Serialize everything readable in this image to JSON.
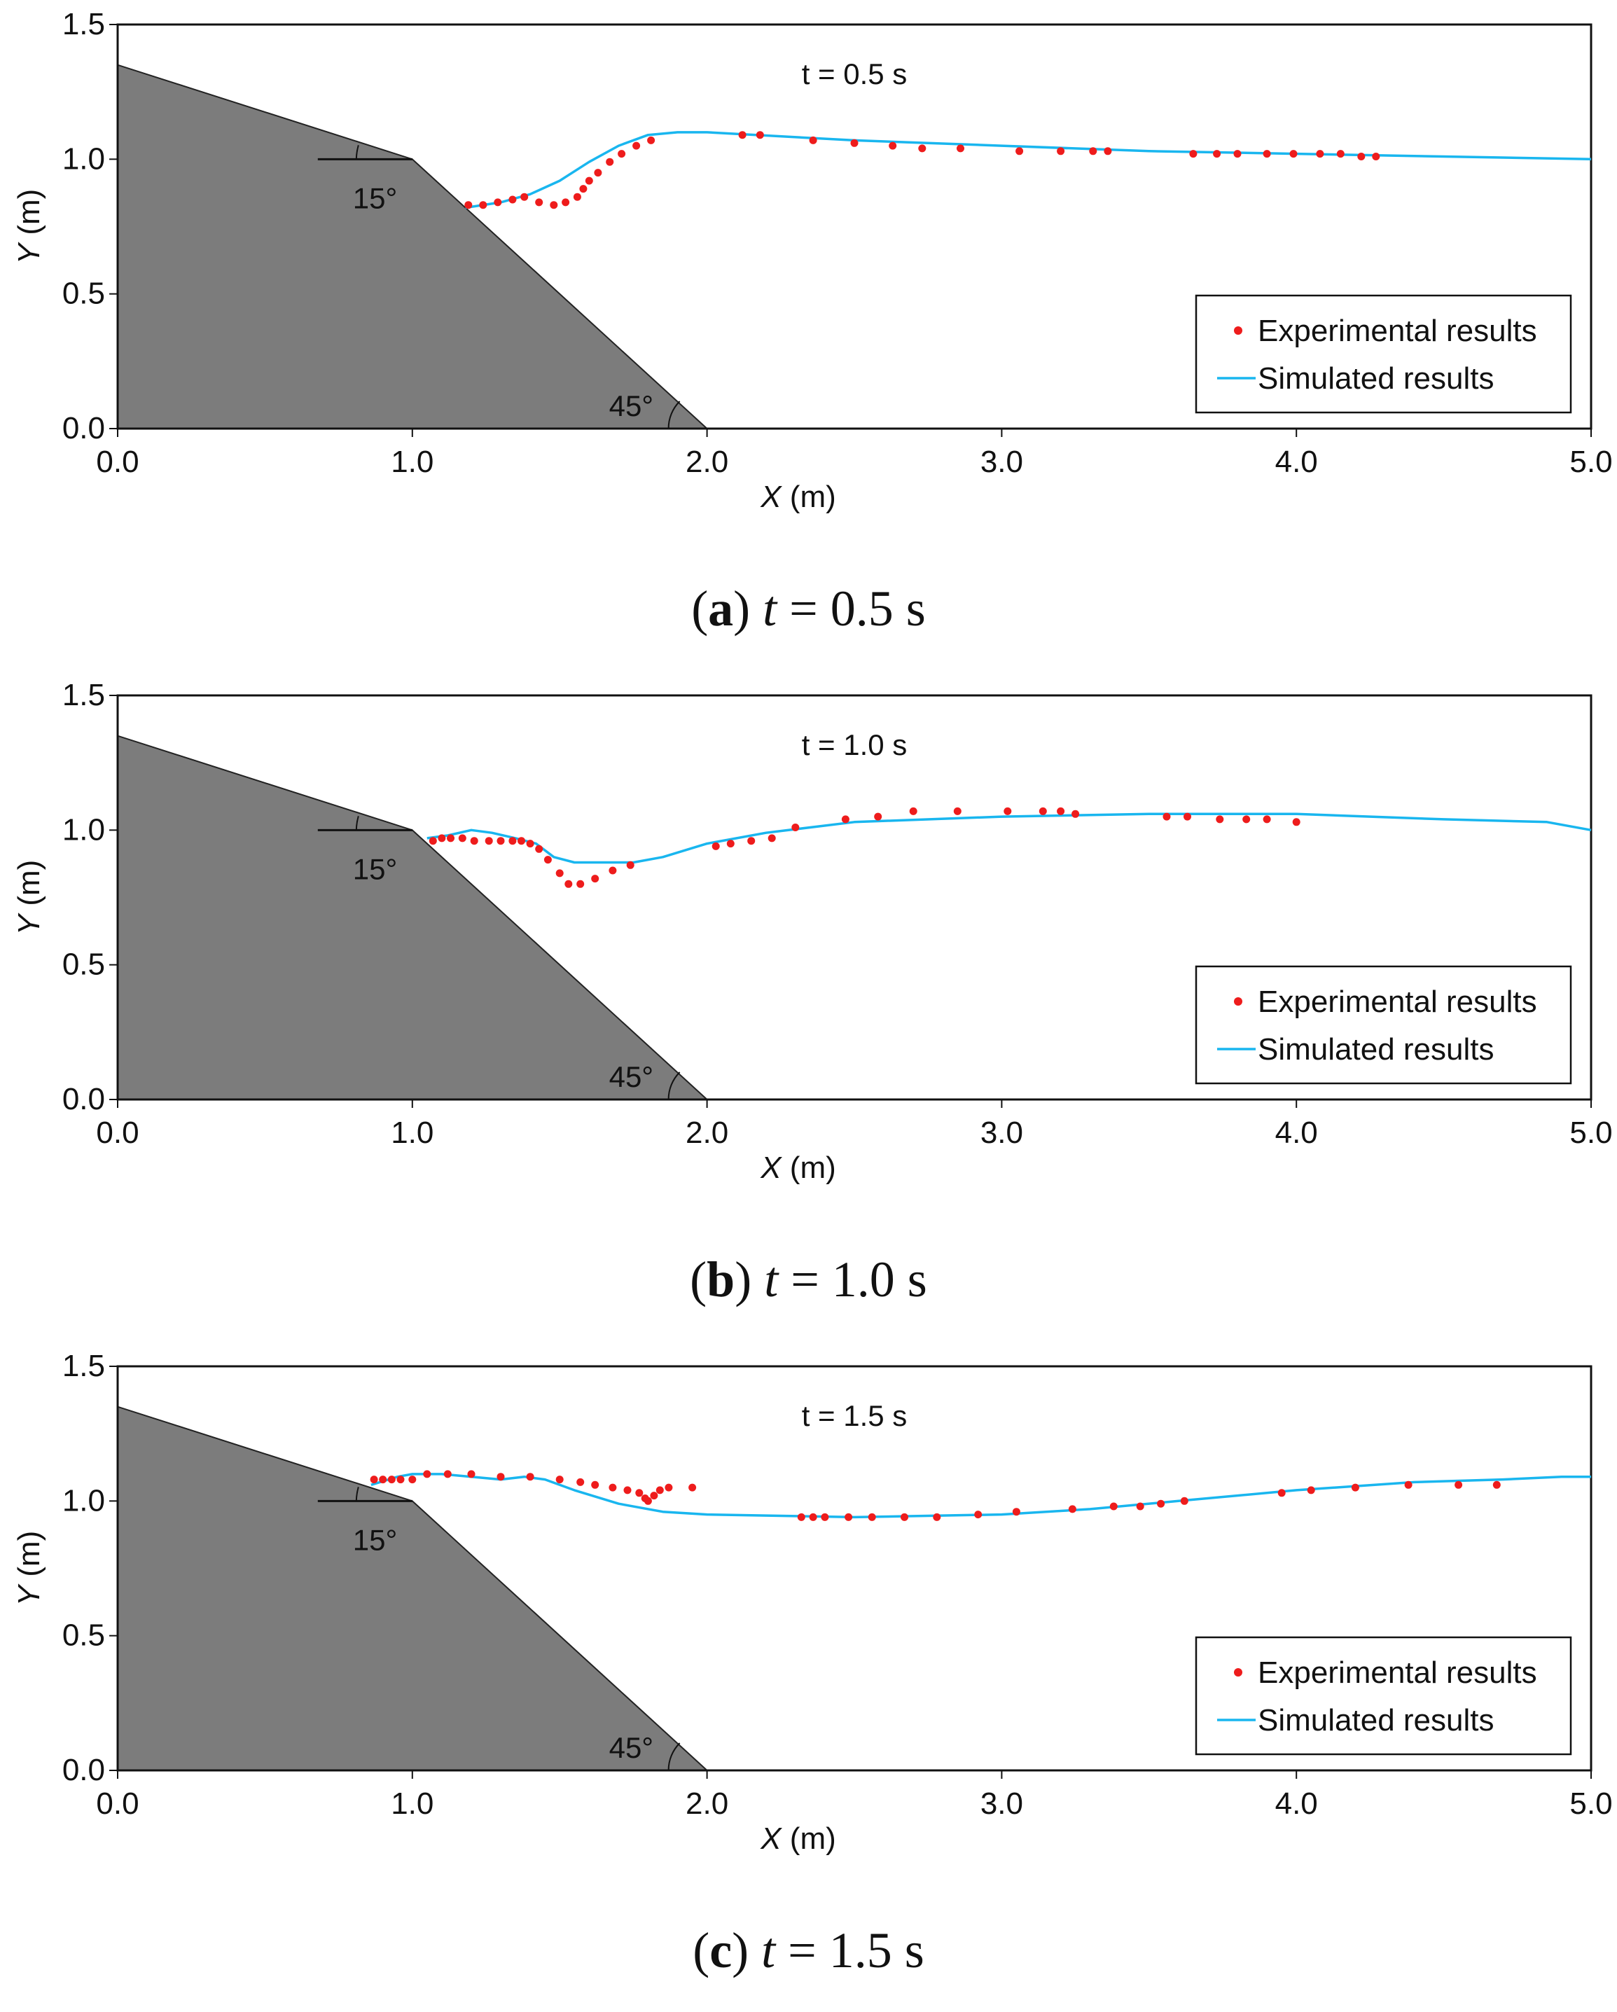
{
  "chart_data": [
    {
      "type": "scatter+line",
      "id": "a",
      "title": "t = 0.5 s",
      "caption": {
        "letter": "a",
        "t_symbol": "t",
        "rest": " = 0.5 s"
      },
      "xlabel": {
        "sym": "X",
        "unit": " (m)"
      },
      "ylabel": {
        "sym": "Y",
        "unit": " (m)"
      },
      "xlim": [
        0,
        5
      ],
      "ylim": [
        0,
        1.5
      ],
      "xticks": [
        "0.0",
        "1.0",
        "2.0",
        "3.0",
        "4.0",
        "5.0"
      ],
      "yticks": [
        "0.0",
        "0.5",
        "1.0",
        "1.5"
      ],
      "angle_labels": {
        "upper": "15°",
        "lower": "45°"
      },
      "slope": [
        [
          0,
          1.35
        ],
        [
          1.0,
          1.0
        ],
        [
          2.0,
          0.0
        ]
      ],
      "legend": {
        "experimental": "Experimental results",
        "simulated": "Simulated results"
      },
      "colors": {
        "experimental": "#ee1c1c",
        "simulated": "#19b6ef",
        "slope": "#7c7c7c"
      },
      "simulated": [
        [
          1.18,
          0.82
        ],
        [
          1.3,
          0.84
        ],
        [
          1.4,
          0.87
        ],
        [
          1.5,
          0.92
        ],
        [
          1.6,
          0.99
        ],
        [
          1.7,
          1.05
        ],
        [
          1.8,
          1.09
        ],
        [
          1.9,
          1.1
        ],
        [
          2.0,
          1.1
        ],
        [
          2.5,
          1.07
        ],
        [
          3.0,
          1.05
        ],
        [
          3.5,
          1.03
        ],
        [
          4.0,
          1.02
        ],
        [
          4.5,
          1.01
        ],
        [
          5.0,
          1.0
        ]
      ],
      "experimental": [
        [
          1.19,
          0.83
        ],
        [
          1.24,
          0.83
        ],
        [
          1.29,
          0.84
        ],
        [
          1.34,
          0.85
        ],
        [
          1.38,
          0.86
        ],
        [
          1.43,
          0.84
        ],
        [
          1.48,
          0.83
        ],
        [
          1.52,
          0.84
        ],
        [
          1.56,
          0.86
        ],
        [
          1.58,
          0.89
        ],
        [
          1.6,
          0.92
        ],
        [
          1.63,
          0.95
        ],
        [
          1.67,
          0.99
        ],
        [
          1.71,
          1.02
        ],
        [
          1.76,
          1.05
        ],
        [
          1.81,
          1.07
        ],
        [
          2.12,
          1.09
        ],
        [
          2.18,
          1.09
        ],
        [
          2.36,
          1.07
        ],
        [
          2.5,
          1.06
        ],
        [
          2.63,
          1.05
        ],
        [
          2.73,
          1.04
        ],
        [
          2.86,
          1.04
        ],
        [
          3.06,
          1.03
        ],
        [
          3.2,
          1.03
        ],
        [
          3.31,
          1.03
        ],
        [
          3.36,
          1.03
        ],
        [
          3.65,
          1.02
        ],
        [
          3.73,
          1.02
        ],
        [
          3.8,
          1.02
        ],
        [
          3.9,
          1.02
        ],
        [
          3.99,
          1.02
        ],
        [
          4.08,
          1.02
        ],
        [
          4.15,
          1.02
        ],
        [
          4.22,
          1.01
        ],
        [
          4.27,
          1.01
        ]
      ]
    },
    {
      "type": "scatter+line",
      "id": "b",
      "title": "t = 1.0 s",
      "caption": {
        "letter": "b",
        "t_symbol": "t",
        "rest": " = 1.0 s"
      },
      "xlabel": {
        "sym": "X",
        "unit": " (m)"
      },
      "ylabel": {
        "sym": "Y",
        "unit": " (m)"
      },
      "xlim": [
        0,
        5
      ],
      "ylim": [
        0,
        1.5
      ],
      "xticks": [
        "0.0",
        "1.0",
        "2.0",
        "3.0",
        "4.0",
        "5.0"
      ],
      "yticks": [
        "0.0",
        "0.5",
        "1.0",
        "1.5"
      ],
      "angle_labels": {
        "upper": "15°",
        "lower": "45°"
      },
      "slope": [
        [
          0,
          1.35
        ],
        [
          1.0,
          1.0
        ],
        [
          2.0,
          0.0
        ]
      ],
      "legend": {
        "experimental": "Experimental results",
        "simulated": "Simulated results"
      },
      "colors": {
        "experimental": "#ee1c1c",
        "simulated": "#19b6ef",
        "slope": "#7c7c7c"
      },
      "simulated": [
        [
          1.05,
          0.97
        ],
        [
          1.12,
          0.98
        ],
        [
          1.2,
          1.0
        ],
        [
          1.27,
          0.99
        ],
        [
          1.35,
          0.97
        ],
        [
          1.42,
          0.95
        ],
        [
          1.48,
          0.9
        ],
        [
          1.55,
          0.88
        ],
        [
          1.65,
          0.88
        ],
        [
          1.75,
          0.88
        ],
        [
          1.85,
          0.9
        ],
        [
          2.0,
          0.95
        ],
        [
          2.2,
          0.99
        ],
        [
          2.5,
          1.03
        ],
        [
          3.0,
          1.05
        ],
        [
          3.5,
          1.06
        ],
        [
          4.0,
          1.06
        ],
        [
          4.5,
          1.04
        ],
        [
          4.85,
          1.03
        ],
        [
          5.0,
          1.0
        ]
      ],
      "experimental": [
        [
          1.07,
          0.96
        ],
        [
          1.1,
          0.97
        ],
        [
          1.13,
          0.97
        ],
        [
          1.17,
          0.97
        ],
        [
          1.21,
          0.96
        ],
        [
          1.26,
          0.96
        ],
        [
          1.3,
          0.96
        ],
        [
          1.34,
          0.96
        ],
        [
          1.37,
          0.96
        ],
        [
          1.4,
          0.95
        ],
        [
          1.43,
          0.93
        ],
        [
          1.46,
          0.89
        ],
        [
          1.5,
          0.84
        ],
        [
          1.53,
          0.8
        ],
        [
          1.57,
          0.8
        ],
        [
          1.62,
          0.82
        ],
        [
          1.68,
          0.85
        ],
        [
          1.74,
          0.87
        ],
        [
          2.03,
          0.94
        ],
        [
          2.08,
          0.95
        ],
        [
          2.15,
          0.96
        ],
        [
          2.22,
          0.97
        ],
        [
          2.3,
          1.01
        ],
        [
          2.47,
          1.04
        ],
        [
          2.58,
          1.05
        ],
        [
          2.7,
          1.07
        ],
        [
          2.85,
          1.07
        ],
        [
          3.02,
          1.07
        ],
        [
          3.14,
          1.07
        ],
        [
          3.2,
          1.07
        ],
        [
          3.25,
          1.06
        ],
        [
          3.56,
          1.05
        ],
        [
          3.63,
          1.05
        ],
        [
          3.74,
          1.04
        ],
        [
          3.83,
          1.04
        ],
        [
          3.9,
          1.04
        ],
        [
          4.0,
          1.03
        ]
      ]
    },
    {
      "type": "scatter+line",
      "id": "c",
      "title": "t = 1.5 s",
      "caption": {
        "letter": "c",
        "t_symbol": "t",
        "rest": " = 1.5 s"
      },
      "xlabel": {
        "sym": "X",
        "unit": " (m)"
      },
      "ylabel": {
        "sym": "Y",
        "unit": " (m)"
      },
      "xlim": [
        0,
        5
      ],
      "ylim": [
        0,
        1.5
      ],
      "xticks": [
        "0.0",
        "1.0",
        "2.0",
        "3.0",
        "4.0",
        "5.0"
      ],
      "yticks": [
        "0.0",
        "0.5",
        "1.0",
        "1.5"
      ],
      "angle_labels": {
        "upper": "15°",
        "lower": "45°"
      },
      "slope": [
        [
          0,
          1.35
        ],
        [
          1.0,
          1.0
        ],
        [
          2.0,
          0.0
        ]
      ],
      "legend": {
        "experimental": "Experimental results",
        "simulated": "Simulated results"
      },
      "colors": {
        "experimental": "#ee1c1c",
        "simulated": "#19b6ef",
        "slope": "#7c7c7c"
      },
      "simulated": [
        [
          0.86,
          1.06
        ],
        [
          0.95,
          1.09
        ],
        [
          1.0,
          1.1
        ],
        [
          1.1,
          1.1
        ],
        [
          1.2,
          1.09
        ],
        [
          1.3,
          1.08
        ],
        [
          1.38,
          1.09
        ],
        [
          1.45,
          1.08
        ],
        [
          1.55,
          1.04
        ],
        [
          1.7,
          0.99
        ],
        [
          1.85,
          0.96
        ],
        [
          2.0,
          0.95
        ],
        [
          2.5,
          0.94
        ],
        [
          3.0,
          0.95
        ],
        [
          3.3,
          0.97
        ],
        [
          3.6,
          1.0
        ],
        [
          4.0,
          1.04
        ],
        [
          4.4,
          1.07
        ],
        [
          4.7,
          1.08
        ],
        [
          4.9,
          1.09
        ],
        [
          5.0,
          1.09
        ]
      ],
      "experimental": [
        [
          0.87,
          1.08
        ],
        [
          0.9,
          1.08
        ],
        [
          0.93,
          1.08
        ],
        [
          0.96,
          1.08
        ],
        [
          1.0,
          1.08
        ],
        [
          1.05,
          1.1
        ],
        [
          1.12,
          1.1
        ],
        [
          1.2,
          1.1
        ],
        [
          1.3,
          1.09
        ],
        [
          1.4,
          1.09
        ],
        [
          1.5,
          1.08
        ],
        [
          1.57,
          1.07
        ],
        [
          1.62,
          1.06
        ],
        [
          1.68,
          1.05
        ],
        [
          1.73,
          1.04
        ],
        [
          1.77,
          1.03
        ],
        [
          1.79,
          1.01
        ],
        [
          1.8,
          1.0
        ],
        [
          1.82,
          1.02
        ],
        [
          1.84,
          1.04
        ],
        [
          1.87,
          1.05
        ],
        [
          1.95,
          1.05
        ],
        [
          2.32,
          0.94
        ],
        [
          2.36,
          0.94
        ],
        [
          2.4,
          0.94
        ],
        [
          2.48,
          0.94
        ],
        [
          2.56,
          0.94
        ],
        [
          2.67,
          0.94
        ],
        [
          2.78,
          0.94
        ],
        [
          2.92,
          0.95
        ],
        [
          3.05,
          0.96
        ],
        [
          3.24,
          0.97
        ],
        [
          3.38,
          0.98
        ],
        [
          3.47,
          0.98
        ],
        [
          3.54,
          0.99
        ],
        [
          3.62,
          1.0
        ],
        [
          3.95,
          1.03
        ],
        [
          4.05,
          1.04
        ],
        [
          4.2,
          1.05
        ],
        [
          4.38,
          1.06
        ],
        [
          4.55,
          1.06
        ],
        [
          4.68,
          1.06
        ]
      ]
    }
  ]
}
